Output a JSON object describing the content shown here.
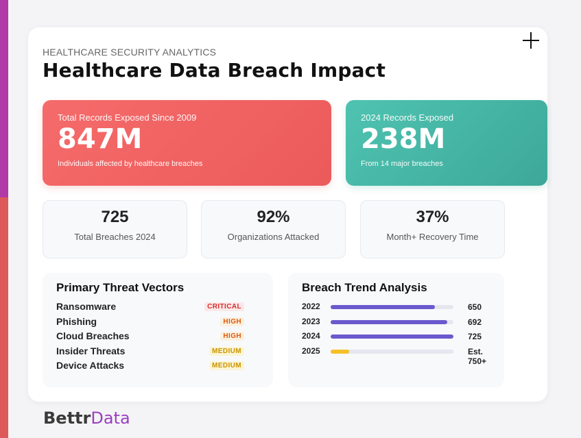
{
  "header": {
    "eyebrow": "HEALTHCARE SECURITY ANALYTICS",
    "title": "Healthcare Data Breach Impact"
  },
  "hero": {
    "total": {
      "label": "Total Records Exposed Since 2009",
      "value": "847M",
      "sub": "Individuals affected by healthcare breaches"
    },
    "year2024": {
      "label": "2024 Records Exposed",
      "value": "238M",
      "sub": "From 14 major breaches"
    }
  },
  "stats": [
    {
      "value": "725",
      "label": "Total Breaches 2024"
    },
    {
      "value": "92%",
      "label": "Organizations Attacked"
    },
    {
      "value": "37%",
      "label": "Month+ Recovery Time"
    }
  ],
  "threats": {
    "title": "Primary Threat Vectors",
    "items": [
      {
        "name": "Ransomware",
        "level": "CRITICAL"
      },
      {
        "name": "Phishing",
        "level": "HIGH"
      },
      {
        "name": "Cloud Breaches",
        "level": "HIGH"
      },
      {
        "name": "Insider Threats",
        "level": "MEDIUM"
      },
      {
        "name": "Device Attacks",
        "level": "MEDIUM"
      }
    ]
  },
  "trend": {
    "title": "Breach Trend Analysis",
    "rows": [
      {
        "year": "2022",
        "value": "650",
        "fill": 0.85,
        "color": "#6a5acd"
      },
      {
        "year": "2023",
        "value": "692",
        "fill": 0.95,
        "color": "#6a5acd"
      },
      {
        "year": "2024",
        "value": "725",
        "fill": 1.0,
        "color": "#6a5acd"
      },
      {
        "year": "2025",
        "value": "Est. 750+",
        "fill": 0.15,
        "color": "#f5c02a"
      }
    ]
  },
  "brand": {
    "part1": "Bettr",
    "part2": "Data"
  },
  "colors": {
    "accent_red": "#f56b6b",
    "accent_teal": "#4fc3b1",
    "stripe_purple": "#b23aa8",
    "stripe_red": "#dd5a5a"
  }
}
